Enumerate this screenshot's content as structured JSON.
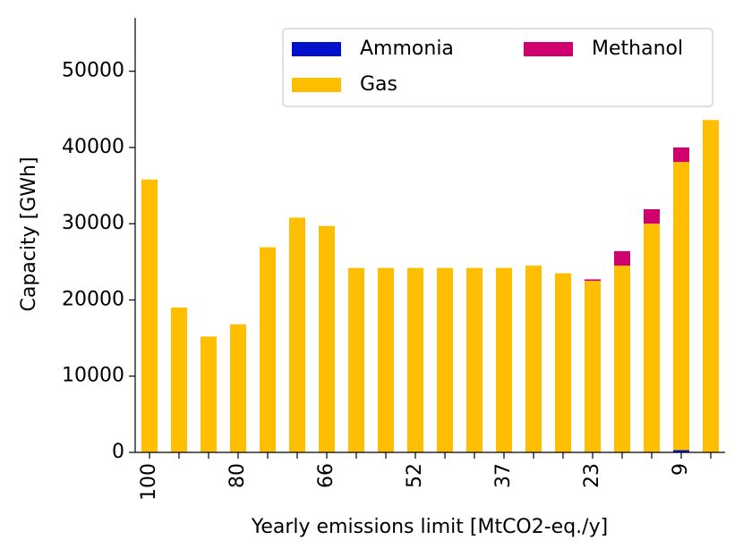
{
  "chart_data": {
    "type": "stacked_bar",
    "xlabel": "Yearly emissions limit [MtCO2-eq./y]",
    "ylabel": "Capacity [GWh]",
    "categories": [
      "100",
      null,
      null,
      "80",
      null,
      null,
      "66",
      null,
      null,
      "52",
      null,
      null,
      "37",
      null,
      null,
      "23",
      null,
      null,
      "9",
      null
    ],
    "series": [
      {
        "name": "Ammonia",
        "color": "#0011cc",
        "values": [
          0,
          0,
          0,
          0,
          0,
          0,
          0,
          0,
          0,
          0,
          0,
          0,
          0,
          0,
          0,
          0,
          0,
          0,
          300,
          0
        ]
      },
      {
        "name": "Gas",
        "color": "#ffbf00",
        "values": [
          35800,
          19000,
          15200,
          16800,
          26900,
          30800,
          29700,
          24200,
          24200,
          24200,
          24200,
          24200,
          24200,
          24500,
          23500,
          22500,
          24500,
          30000,
          37800,
          43600
        ]
      },
      {
        "name": "Methanol",
        "color": "#d0006f",
        "values": [
          0,
          0,
          0,
          0,
          0,
          0,
          0,
          0,
          0,
          0,
          0,
          0,
          0,
          0,
          0,
          200,
          1900,
          1900,
          1900,
          0
        ]
      }
    ],
    "ylim": [
      0,
      57000
    ],
    "yticks": [
      0,
      10000,
      20000,
      30000,
      40000,
      50000
    ],
    "legend": "upper right"
  }
}
